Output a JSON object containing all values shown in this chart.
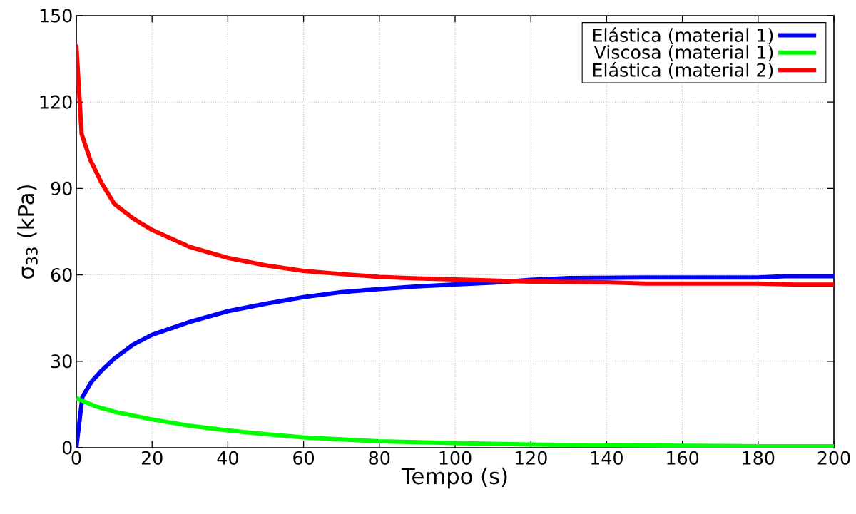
{
  "chart_data": {
    "type": "line",
    "xlabel": "Tempo (s)",
    "ylabel": "σ$_{33}$ (kPa)",
    "xlim": [
      0,
      200
    ],
    "ylim": [
      0,
      150
    ],
    "xticks": [
      0,
      20,
      40,
      60,
      80,
      100,
      120,
      140,
      160,
      180,
      200
    ],
    "yticks": [
      0,
      30,
      60,
      90,
      120,
      150
    ],
    "grid": true,
    "legend": "top right",
    "marker": "none",
    "line_style": "solid",
    "series": [
      {
        "name": "Elástica (material 1)",
        "color": "#0000ff",
        "x": [
          0,
          1.6,
          4,
          6.6,
          10,
          15,
          20,
          30,
          40,
          50,
          60,
          70,
          80,
          90,
          100,
          110,
          120,
          130,
          150,
          180,
          187,
          200
        ],
        "values": [
          0,
          17.6,
          22.9,
          26.7,
          30.9,
          35.8,
          39.2,
          43.7,
          47.4,
          50,
          52.3,
          54,
          55.1,
          56,
          56.7,
          57.3,
          58.3,
          58.9,
          59.1,
          59.1,
          59.5,
          59.5
        ]
      },
      {
        "name": "Viscosa (material 1)",
        "color": "#00ff00",
        "x": [
          0,
          1.6,
          5,
          10,
          20,
          30,
          40,
          50,
          60,
          80,
          100,
          120,
          140,
          160,
          180,
          200
        ],
        "values": [
          17.2,
          16.3,
          14.4,
          12.5,
          9.8,
          7.6,
          6.0,
          4.7,
          3.6,
          2.2,
          1.6,
          1.1,
          0.9,
          0.7,
          0.5,
          0.5
        ]
      },
      {
        "name": "Elástica (material 2)",
        "color": "#ff0000",
        "x": [
          0,
          1.4,
          3.7,
          6.8,
          10,
          15,
          20,
          30,
          40,
          50,
          60,
          70,
          80,
          90,
          100,
          120,
          140,
          150,
          180,
          190,
          200
        ],
        "values": [
          140,
          108.9,
          99.9,
          91.6,
          84.7,
          79.6,
          75.6,
          69.7,
          65.9,
          63.3,
          61.4,
          60.3,
          59.3,
          58.8,
          58.4,
          57.7,
          57.4,
          57,
          57,
          56.6,
          56.6
        ]
      }
    ]
  }
}
